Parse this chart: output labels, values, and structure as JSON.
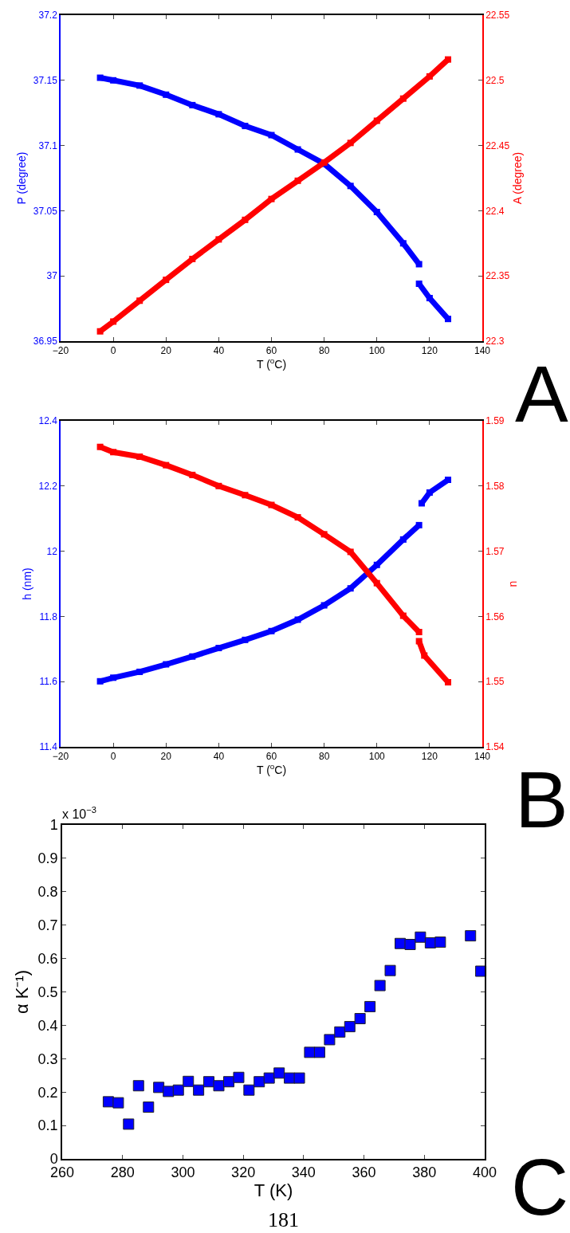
{
  "chart_data": [
    {
      "type": "line",
      "marker": "square",
      "xlabel": "T ($^{o}$C)",
      "ylabel": "P (degree)",
      "y2label": "A (degree)",
      "xlim": [
        -20,
        140
      ],
      "xticks": [
        -20,
        0,
        20,
        40,
        60,
        80,
        100,
        120,
        140
      ],
      "ylim": [
        36.95,
        37.2
      ],
      "yticks": [
        36.95,
        37,
        37.05,
        37.1,
        37.15,
        37.2
      ],
      "y2lim": [
        22.3,
        22.55
      ],
      "y2ticks": [
        22.3,
        22.35,
        22.4,
        22.45,
        22.5,
        22.55
      ],
      "annotations": [
        "A"
      ],
      "series": [
        {
          "color": "#0000ff",
          "x": [
            -5,
            0,
            10,
            20,
            30,
            40,
            50,
            60,
            70,
            80,
            90,
            100,
            110,
            116
          ],
          "values": [
            37.152,
            37.15,
            37.146,
            37.139,
            37.131,
            37.124,
            37.115,
            37.108,
            37.097,
            37.086,
            37.069,
            37.049,
            37.025,
            37.009
          ]
        },
        {
          "color": "#0000ff",
          "x": [
            116,
            120,
            127
          ],
          "values": [
            36.994,
            36.983,
            36.967
          ]
        },
        {
          "color": "#ff0000",
          "axis": "y2",
          "x": [
            -5,
            0,
            10,
            20,
            30,
            40,
            50,
            60,
            70,
            80,
            90,
            100,
            110,
            120,
            127
          ],
          "values": [
            22.3075,
            22.315,
            22.331,
            22.347,
            22.363,
            22.378,
            22.393,
            22.409,
            22.423,
            22.437,
            22.452,
            22.469,
            22.486,
            22.503,
            22.516
          ]
        }
      ]
    },
    {
      "type": "line",
      "marker": "square",
      "xlabel": "T ($^{o}$C)",
      "ylabel": "h (nm)",
      "y2label": "n",
      "xlim": [
        -20,
        140
      ],
      "xticks": [
        -20,
        0,
        20,
        40,
        60,
        80,
        100,
        120,
        140
      ],
      "ylim": [
        11.4,
        12.4
      ],
      "yticks": [
        11.4,
        11.6,
        11.8,
        12,
        12.2,
        12.4
      ],
      "y2lim": [
        1.54,
        1.59
      ],
      "y2ticks": [
        1.54,
        1.55,
        1.56,
        1.57,
        1.58,
        1.59
      ],
      "annotations": [
        "B"
      ],
      "series": [
        {
          "color": "#0000ff",
          "x": [
            -5,
            0,
            10,
            20,
            30,
            40,
            50,
            60,
            70,
            80,
            90,
            100,
            110,
            116
          ],
          "values": [
            11.601,
            11.612,
            11.63,
            11.653,
            11.677,
            11.703,
            11.728,
            11.755,
            11.79,
            11.834,
            11.886,
            11.958,
            12.036,
            12.08
          ]
        },
        {
          "color": "#0000ff",
          "x": [
            117,
            120,
            127
          ],
          "values": [
            12.147,
            12.18,
            12.219
          ]
        },
        {
          "color": "#ff0000",
          "axis": "y2",
          "x": [
            -5,
            0,
            10,
            20,
            30,
            40,
            50,
            60,
            70,
            80,
            90,
            100,
            110,
            116
          ],
          "values": [
            1.586,
            1.5852,
            1.5845,
            1.5832,
            1.5817,
            1.58,
            1.5786,
            1.5771,
            1.5752,
            1.5726,
            1.5699,
            1.5651,
            1.5601,
            1.5576
          ]
        },
        {
          "color": "#ff0000",
          "axis": "y2",
          "x": [
            116,
            118,
            127
          ],
          "values": [
            1.5562,
            1.554,
            1.5499
          ]
        }
      ]
    },
    {
      "type": "scatter",
      "marker": "square",
      "xlabel": "T (K)",
      "ylabel": "α K⁻¹)",
      "xlim": [
        260,
        400
      ],
      "xticks": [
        260,
        280,
        300,
        320,
        340,
        360,
        380,
        400
      ],
      "ylim": [
        0,
        1
      ],
      "yticks": [
        0,
        0.1,
        0.2,
        0.3,
        0.4,
        0.5,
        0.6,
        0.7,
        0.8,
        0.9,
        1
      ],
      "annotations": [
        "x 10$^{−3}$",
        "C",
        "181"
      ],
      "series": [
        {
          "color": "#0000ff",
          "x": [
            275.3,
            278.6,
            282.0,
            285.3,
            288.6,
            292.0,
            295.2,
            298.5,
            301.8,
            305.2,
            308.6,
            311.9,
            315.2,
            318.5,
            321.9,
            325.3,
            328.6,
            331.9,
            335.3,
            338.6,
            342.0,
            345.3,
            348.6,
            352.0,
            355.3,
            358.7,
            362.0,
            365.3,
            368.7,
            372.0,
            375.3,
            378.7,
            382.0,
            385.3,
            395.3,
            398.7
          ],
          "values": [
            0.171,
            0.168,
            0.104,
            0.219,
            0.155,
            0.214,
            0.202,
            0.206,
            0.232,
            0.206,
            0.231,
            0.219,
            0.231,
            0.244,
            0.206,
            0.231,
            0.242,
            0.257,
            0.242,
            0.242,
            0.319,
            0.319,
            0.357,
            0.38,
            0.396,
            0.42,
            0.456,
            0.519,
            0.564,
            0.645,
            0.642,
            0.664,
            0.647,
            0.649,
            0.668,
            0.562
          ]
        }
      ]
    }
  ]
}
